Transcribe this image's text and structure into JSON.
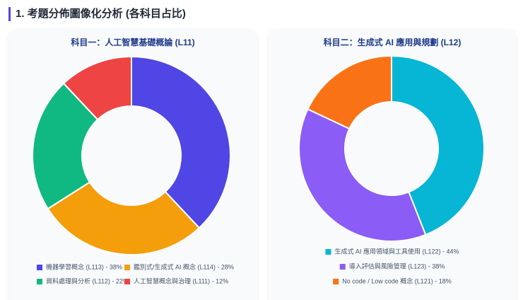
{
  "title": "1. 考題分佈圖像化分析 (各科目占比)",
  "chart_data": [
    {
      "type": "donut",
      "title": "科目一：人工智慧基礎概論 (L11)",
      "categories": [
        "機器學習概念 (L113) - 38%",
        "鑑別式/生成式 AI 概念 (L114) - 28%",
        "資料處理與分析 (L112) - 22%",
        "人工智慧概念與治理 (L111) - 12%"
      ],
      "values": [
        38,
        28,
        22,
        12
      ],
      "colors": [
        "#5046e5",
        "#f59e0b",
        "#10b981",
        "#ef4444"
      ]
    },
    {
      "type": "donut",
      "title": "科目二：生成式 AI 應用與規劃 (L12)",
      "categories": [
        "生成式 AI 應用領域與工具使用 (L122) - 44%",
        "導入評估與風險管理 (L123) - 38%",
        "No code / Low code 概念 (L121) - 18%"
      ],
      "values": [
        44,
        38,
        18
      ],
      "colors": [
        "#06b6d4",
        "#8b5cf6",
        "#f97316"
      ]
    }
  ]
}
